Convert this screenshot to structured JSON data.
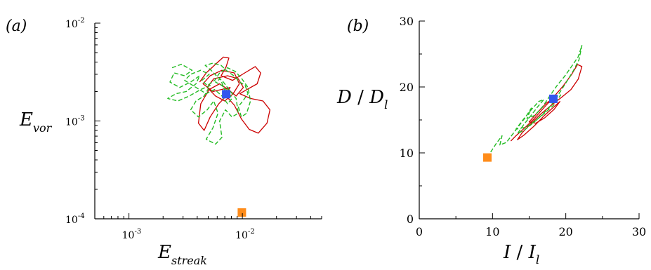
{
  "colors": {
    "solid_curve": "#cc0000",
    "dashed_curve": "#22bb22",
    "blue_marker": "#3355ee",
    "orange_marker": "#ff8c1a"
  },
  "chart_data": [
    {
      "panel_label": "(a)",
      "type": "line",
      "x_scale": "log",
      "y_scale": "log",
      "xlim": [
        0.0005,
        0.05
      ],
      "ylim": [
        0.0001,
        0.01
      ],
      "xlabel_main": "E",
      "xlabel_sub": "streak",
      "ylabel_main": "E",
      "ylabel_sub": "vor",
      "xticks": [
        {
          "value": 0.001,
          "base": "10",
          "exp": "-3"
        },
        {
          "value": 0.01,
          "base": "10",
          "exp": "-2"
        }
      ],
      "yticks": [
        {
          "value": 0.0001,
          "base": "10",
          "exp": "-4"
        },
        {
          "value": 0.001,
          "base": "10",
          "exp": "-3"
        },
        {
          "value": 0.01,
          "base": "10",
          "exp": "-2"
        }
      ],
      "grid": false,
      "markers": [
        {
          "name": "blue-square",
          "x": 0.0072,
          "y": 0.00188,
          "color": "#3355ee"
        },
        {
          "name": "orange-square",
          "x": 0.0099,
          "y": 0.000116,
          "color": "#ff8c1a"
        }
      ],
      "series": [
        {
          "style": "solid",
          "color": "#cc0000",
          "points": [
            [
              0.0042,
              0.0025
            ],
            [
              0.0048,
              0.0031
            ],
            [
              0.0058,
              0.0038
            ],
            [
              0.0068,
              0.0045
            ],
            [
              0.0076,
              0.0044
            ],
            [
              0.0072,
              0.0036
            ],
            [
              0.0065,
              0.0029
            ],
            [
              0.0082,
              0.0026
            ],
            [
              0.0105,
              0.0031
            ],
            [
              0.013,
              0.0036
            ],
            [
              0.0145,
              0.0031
            ],
            [
              0.0135,
              0.0024
            ],
            [
              0.011,
              0.0021
            ],
            [
              0.0095,
              0.0019
            ],
            [
              0.0118,
              0.0017
            ],
            [
              0.0152,
              0.0016
            ],
            [
              0.0175,
              0.0013
            ],
            [
              0.0165,
              0.00095
            ],
            [
              0.0138,
              0.00075
            ],
            [
              0.0115,
              0.00082
            ],
            [
              0.0098,
              0.00105
            ],
            [
              0.0085,
              0.00145
            ],
            [
              0.0072,
              0.0018
            ],
            [
              0.0062,
              0.0015
            ],
            [
              0.0052,
              0.0011
            ],
            [
              0.0046,
              0.0008
            ],
            [
              0.0041,
              0.00095
            ],
            [
              0.0043,
              0.0015
            ],
            [
              0.0051,
              0.0021
            ],
            [
              0.0063,
              0.0024
            ],
            [
              0.0075,
              0.0021
            ],
            [
              0.0088,
              0.0018
            ],
            [
              0.0102,
              0.0022
            ],
            [
              0.0092,
              0.0027
            ],
            [
              0.0074,
              0.0029
            ],
            [
              0.0056,
              0.0027
            ],
            [
              0.0049,
              0.0022
            ],
            [
              0.0058,
              0.0018
            ],
            [
              0.007,
              0.0016
            ],
            [
              0.0083,
              0.0019
            ],
            [
              0.0094,
              0.0024
            ],
            [
              0.0085,
              0.0031
            ],
            [
              0.0066,
              0.0033
            ],
            [
              0.0052,
              0.0029
            ],
            [
              0.0045,
              0.0024
            ],
            [
              0.0055,
              0.002
            ],
            [
              0.0078,
              0.0022
            ],
            [
              0.0072,
              0.00188
            ]
          ]
        },
        {
          "style": "dashed",
          "color": "#22bb22",
          "points": [
            [
              0.0024,
              0.0035
            ],
            [
              0.0029,
              0.0038
            ],
            [
              0.0036,
              0.0033
            ],
            [
              0.0031,
              0.0029
            ],
            [
              0.0025,
              0.0031
            ],
            [
              0.0023,
              0.0025
            ],
            [
              0.0028,
              0.0022
            ],
            [
              0.0035,
              0.0025
            ],
            [
              0.0042,
              0.0029
            ],
            [
              0.0039,
              0.0024
            ],
            [
              0.0032,
              0.002
            ],
            [
              0.0026,
              0.0019
            ],
            [
              0.0022,
              0.0017
            ],
            [
              0.0027,
              0.0016
            ],
            [
              0.0034,
              0.0018
            ],
            [
              0.0043,
              0.0021
            ],
            [
              0.0052,
              0.0023
            ],
            [
              0.0046,
              0.0018
            ],
            [
              0.0039,
              0.0016
            ],
            [
              0.0035,
              0.0013
            ],
            [
              0.0041,
              0.0011
            ],
            [
              0.0049,
              0.0013
            ],
            [
              0.0056,
              0.0016
            ],
            [
              0.0061,
              0.0012
            ],
            [
              0.0055,
              0.00085
            ],
            [
              0.0048,
              0.00065
            ],
            [
              0.0058,
              0.00058
            ],
            [
              0.0066,
              0.00068
            ],
            [
              0.0063,
              0.001
            ],
            [
              0.0071,
              0.0013
            ],
            [
              0.0081,
              0.0011
            ],
            [
              0.0092,
              0.0012
            ],
            [
              0.0088,
              0.0017
            ],
            [
              0.0076,
              0.0021
            ],
            [
              0.0068,
              0.0025
            ],
            [
              0.0059,
              0.0029
            ],
            [
              0.0053,
              0.0033
            ],
            [
              0.0047,
              0.0037
            ],
            [
              0.0055,
              0.0039
            ],
            [
              0.0065,
              0.0037
            ],
            [
              0.0072,
              0.0033
            ],
            [
              0.0084,
              0.0029
            ],
            [
              0.0095,
              0.0025
            ],
            [
              0.0106,
              0.0023
            ],
            [
              0.0112,
              0.0019
            ],
            [
              0.0101,
              0.0016
            ],
            [
              0.0092,
              0.0014
            ],
            [
              0.0098,
              0.0011
            ],
            [
              0.0109,
              0.0012
            ],
            [
              0.0118,
              0.0016
            ],
            [
              0.0112,
              0.0022
            ],
            [
              0.0099,
              0.0027
            ],
            [
              0.0087,
              0.0032
            ],
            [
              0.0074,
              0.0035
            ],
            [
              0.0063,
              0.0031
            ],
            [
              0.0057,
              0.0026
            ],
            [
              0.0049,
              0.0023
            ],
            [
              0.0044,
              0.0026
            ],
            [
              0.0051,
              0.003
            ],
            [
              0.0043,
              0.0033
            ],
            [
              0.0035,
              0.003
            ],
            [
              0.0031,
              0.0026
            ],
            [
              0.0039,
              0.0022
            ],
            [
              0.0048,
              0.0019
            ],
            [
              0.0057,
              0.0021
            ],
            [
              0.0066,
              0.0018
            ],
            [
              0.0074,
              0.0015
            ],
            [
              0.0081,
              0.0017
            ],
            [
              0.0075,
              0.002
            ],
            [
              0.0066,
              0.0023
            ],
            [
              0.0058,
              0.0025
            ],
            [
              0.0064,
              0.0027
            ],
            [
              0.0072,
              0.00188
            ]
          ]
        }
      ]
    },
    {
      "panel_label": "(b)",
      "type": "line",
      "x_scale": "linear",
      "y_scale": "linear",
      "xlim": [
        0,
        30
      ],
      "ylim": [
        0,
        30
      ],
      "xlabel_main": "I",
      "xlabel_sep": " / ",
      "xlabel_var": "I",
      "xlabel_sub": "l",
      "ylabel_main": "D",
      "ylabel_sep": " / ",
      "ylabel_var": "D",
      "ylabel_sub": "l",
      "xticks": [
        "0",
        "10",
        "20",
        "30"
      ],
      "yticks": [
        "0",
        "10",
        "20",
        "30"
      ],
      "grid": false,
      "markers": [
        {
          "name": "blue-square",
          "x": 18.3,
          "y": 18.2,
          "color": "#3355ee"
        },
        {
          "name": "orange-square",
          "x": 9.3,
          "y": 9.3,
          "color": "#ff8c1a"
        }
      ],
      "series": [
        {
          "style": "solid",
          "color": "#cc0000",
          "points": [
            [
              12.5,
              11.8
            ],
            [
              13.2,
              12.6
            ],
            [
              14.4,
              13.8
            ],
            [
              15.6,
              15.1
            ],
            [
              16.8,
              16.6
            ],
            [
              18.2,
              18.3
            ],
            [
              19.6,
              20.1
            ],
            [
              20.8,
              21.9
            ],
            [
              21.6,
              23.4
            ],
            [
              22.2,
              23.1
            ],
            [
              21.7,
              21.2
            ],
            [
              20.7,
              19.6
            ],
            [
              19.4,
              18.4
            ],
            [
              18.0,
              17.2
            ],
            [
              16.6,
              15.9
            ],
            [
              15.2,
              14.4
            ],
            [
              14.0,
              13.0
            ],
            [
              13.4,
              12.0
            ],
            [
              14.3,
              12.7
            ],
            [
              15.7,
              14.1
            ],
            [
              17.0,
              15.6
            ],
            [
              18.3,
              16.9
            ],
            [
              19.2,
              17.8
            ],
            [
              18.4,
              16.6
            ],
            [
              17.1,
              15.3
            ],
            [
              15.9,
              14.5
            ],
            [
              15.0,
              14.7
            ],
            [
              16.2,
              16.2
            ],
            [
              17.4,
              17.6
            ],
            [
              18.3,
              18.2
            ]
          ]
        },
        {
          "style": "dashed",
          "color": "#22bb22",
          "points": [
            [
              9.3,
              9.3
            ],
            [
              9.8,
              10.2
            ],
            [
              10.5,
              11.4
            ],
            [
              11.3,
              12.6
            ],
            [
              11.0,
              11.2
            ],
            [
              11.9,
              11.6
            ],
            [
              12.8,
              12.9
            ],
            [
              13.6,
              14.1
            ],
            [
              14.5,
              15.4
            ],
            [
              15.3,
              16.8
            ],
            [
              14.7,
              15.2
            ],
            [
              15.8,
              15.7
            ],
            [
              16.9,
              17.1
            ],
            [
              17.8,
              18.6
            ],
            [
              18.8,
              20.2
            ],
            [
              19.9,
              21.7
            ],
            [
              20.9,
              23.3
            ],
            [
              21.7,
              24.6
            ],
            [
              22.2,
              26.3
            ],
            [
              21.8,
              24.1
            ],
            [
              21.0,
              22.4
            ],
            [
              20.0,
              20.6
            ],
            [
              18.9,
              18.7
            ],
            [
              17.9,
              17.1
            ],
            [
              16.8,
              15.8
            ],
            [
              15.6,
              14.6
            ],
            [
              14.4,
              13.5
            ],
            [
              13.4,
              12.9
            ],
            [
              14.2,
              14.2
            ],
            [
              15.2,
              15.6
            ],
            [
              16.1,
              16.9
            ],
            [
              17.0,
              18.1
            ],
            [
              16.3,
              17.8
            ],
            [
              15.1,
              16.3
            ],
            [
              14.0,
              14.8
            ],
            [
              13.2,
              13.6
            ],
            [
              14.6,
              13.9
            ],
            [
              16.0,
              15.0
            ],
            [
              17.3,
              16.2
            ],
            [
              18.5,
              17.4
            ],
            [
              19.3,
              18.8
            ],
            [
              18.3,
              18.2
            ]
          ]
        }
      ]
    }
  ]
}
